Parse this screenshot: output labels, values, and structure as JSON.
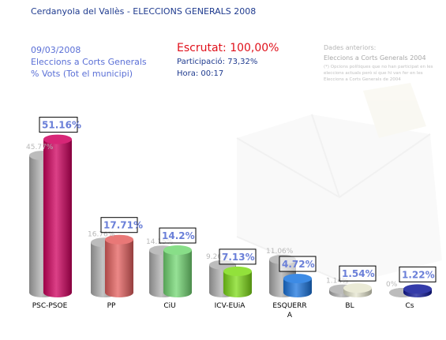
{
  "header": {
    "title": "Cerdanyola del Vallès - ELECCIONS GENERALS 2008",
    "date": "09/03/2008",
    "election": "Eleccions a Corts Generals",
    "scope": "% Vots (Tot el municipi)",
    "escrutat": "Escrutat: 100,00%",
    "participacio": "Participació: 73,32%",
    "hora": "Hora: 00:17",
    "previous_title": "Dades anteriors:",
    "previous_election": "Eleccions a Corts Generals 2004",
    "previous_note": "(*) Opcions polítiques que no han participat en les eleccions actuals però sí que hi van fer en les Eleccions a Corts Generals de 2004"
  },
  "chart_data": {
    "type": "bar",
    "title": "",
    "ylim": [
      0,
      60
    ],
    "categories": [
      "PSC-PSOE",
      "PP",
      "CiU",
      "ICV-EUiA",
      "ESQUERRA",
      "BL",
      "Cs"
    ],
    "category_labels": [
      [
        "PSC-PSOE"
      ],
      [
        "PP"
      ],
      [
        "CiU"
      ],
      [
        "ICV-EUiA"
      ],
      [
        "ESQUERR",
        "A"
      ],
      [
        "BL"
      ],
      [
        "Cs"
      ]
    ],
    "series": [
      {
        "name": "2004",
        "values": [
          45.77,
          16.76,
          14.15,
          9.26,
          11.06,
          1.14,
          0
        ],
        "labels": [
          "45.77%",
          "16.76%",
          "14.15%",
          "9.26%",
          "11.06%",
          "1.14%",
          "0%"
        ]
      },
      {
        "name": "2008",
        "values": [
          51.16,
          17.71,
          14.2,
          7.13,
          4.72,
          1.54,
          1.22
        ],
        "labels": [
          "51.16%",
          "17.71%",
          "14.2%",
          "7.13%",
          "4.72%",
          "1.54%",
          "1.22%"
        ]
      }
    ],
    "colors": {
      "previous": "#b0b0b0",
      "current": [
        "#d0005f",
        "#e5605f",
        "#73d873",
        "#7fdc18",
        "#1b76e0",
        "#e6e6cf",
        "#10189a"
      ]
    }
  }
}
